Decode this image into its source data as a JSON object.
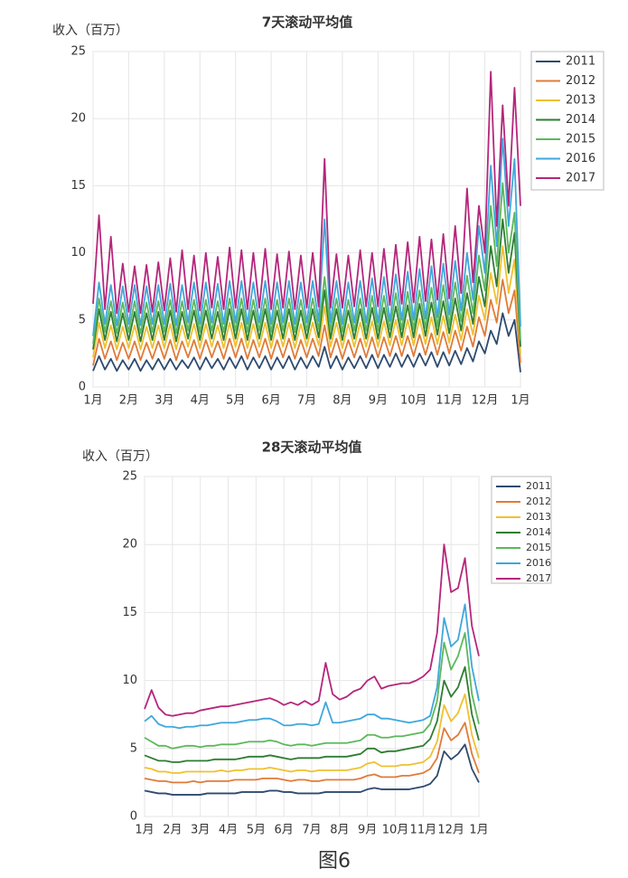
{
  "chart_data": [
    {
      "type": "line",
      "title": "7天滚动平均值",
      "y_label": "收入（百万）",
      "categories": [
        "1月",
        null,
        null,
        null,
        null,
        null,
        "2月",
        null,
        null,
        null,
        null,
        null,
        "3月",
        null,
        null,
        null,
        null,
        null,
        "4月",
        null,
        null,
        null,
        null,
        null,
        "5月",
        null,
        null,
        null,
        null,
        null,
        "6月",
        null,
        null,
        null,
        null,
        null,
        "7月",
        null,
        null,
        null,
        null,
        null,
        "8月",
        null,
        null,
        null,
        null,
        null,
        "9月",
        null,
        null,
        null,
        null,
        null,
        "10月",
        null,
        null,
        null,
        null,
        null,
        "11月",
        null,
        null,
        null,
        null,
        null,
        "12月",
        null,
        null,
        null,
        null,
        null,
        "1月"
      ],
      "ylim": [
        0,
        25
      ],
      "yticks": [
        0,
        5,
        10,
        15,
        20,
        25
      ],
      "grid": true,
      "legend": "right",
      "series": [
        {
          "name": "2011",
          "color": "#2e4a6e",
          "values": [
            1.2,
            2.3,
            1.3,
            2.1,
            1.2,
            2.0,
            1.3,
            2.1,
            1.2,
            2.0,
            1.3,
            2.1,
            1.3,
            2.1,
            1.3,
            2.0,
            1.4,
            2.2,
            1.3,
            2.2,
            1.4,
            2.1,
            1.3,
            2.2,
            1.4,
            2.3,
            1.3,
            2.2,
            1.4,
            2.3,
            1.3,
            2.2,
            1.4,
            2.3,
            1.3,
            2.2,
            1.4,
            2.3,
            1.5,
            3.0,
            1.4,
            2.3,
            1.3,
            2.2,
            1.4,
            2.3,
            1.4,
            2.4,
            1.4,
            2.4,
            1.5,
            2.5,
            1.5,
            2.4,
            1.5,
            2.5,
            1.6,
            2.6,
            1.5,
            2.6,
            1.6,
            2.7,
            1.7,
            2.9,
            1.9,
            3.4,
            2.5,
            4.2,
            3.2,
            5.5,
            3.8,
            5.0,
            1.1
          ]
        },
        {
          "name": "2012",
          "color": "#e07b39",
          "values": [
            1.6,
            3.6,
            2.1,
            3.4,
            2.0,
            3.3,
            2.1,
            3.4,
            2.0,
            3.3,
            2.1,
            3.4,
            2.1,
            3.5,
            2.0,
            3.4,
            2.2,
            3.5,
            2.1,
            3.5,
            2.2,
            3.4,
            2.1,
            3.6,
            2.2,
            3.6,
            2.1,
            3.5,
            2.2,
            3.6,
            2.1,
            3.5,
            2.2,
            3.6,
            2.1,
            3.5,
            2.2,
            3.6,
            2.3,
            4.6,
            2.2,
            3.6,
            2.1,
            3.5,
            2.2,
            3.6,
            2.2,
            3.7,
            2.2,
            3.7,
            2.3,
            3.8,
            2.3,
            3.8,
            2.3,
            3.9,
            2.4,
            4.0,
            2.4,
            4.1,
            2.5,
            4.2,
            2.7,
            4.5,
            3.0,
            5.2,
            3.8,
            6.5,
            4.8,
            8.0,
            5.5,
            7.2,
            1.8
          ]
        },
        {
          "name": "2013",
          "color": "#f0c030",
          "values": [
            2.2,
            4.8,
            2.9,
            4.6,
            2.8,
            4.5,
            2.9,
            4.6,
            2.8,
            4.5,
            2.9,
            4.6,
            2.9,
            4.7,
            2.8,
            4.6,
            3.0,
            4.7,
            2.9,
            4.7,
            3.0,
            4.6,
            2.9,
            4.8,
            3.0,
            4.8,
            2.9,
            4.7,
            3.0,
            4.8,
            2.9,
            4.7,
            3.0,
            4.8,
            2.9,
            4.7,
            3.0,
            4.8,
            3.1,
            6.0,
            3.0,
            4.8,
            2.9,
            4.7,
            3.0,
            4.8,
            3.0,
            4.9,
            3.0,
            4.9,
            3.1,
            5.0,
            3.1,
            5.0,
            3.1,
            5.1,
            3.2,
            5.2,
            3.2,
            5.3,
            3.3,
            5.4,
            3.5,
            5.8,
            3.9,
            6.8,
            5.0,
            8.5,
            6.2,
            10.5,
            7.0,
            9.5,
            2.5
          ]
        },
        {
          "name": "2014",
          "color": "#2e7d32",
          "values": [
            2.8,
            5.8,
            3.5,
            5.6,
            3.4,
            5.5,
            3.5,
            5.6,
            3.4,
            5.5,
            3.5,
            5.6,
            3.5,
            5.7,
            3.4,
            5.6,
            3.6,
            5.7,
            3.5,
            5.7,
            3.6,
            5.6,
            3.5,
            5.8,
            3.6,
            5.8,
            3.5,
            5.7,
            3.6,
            5.8,
            3.5,
            5.7,
            3.6,
            5.8,
            3.5,
            5.7,
            3.6,
            5.8,
            3.7,
            7.2,
            3.6,
            5.8,
            3.5,
            5.7,
            3.6,
            5.8,
            3.6,
            5.9,
            3.6,
            5.9,
            3.7,
            6.0,
            3.7,
            6.1,
            3.7,
            6.2,
            3.8,
            6.3,
            3.9,
            6.4,
            4.0,
            6.6,
            4.2,
            7.0,
            4.7,
            8.2,
            6.0,
            10.5,
            7.5,
            12.5,
            8.5,
            11.5,
            3.0
          ]
        },
        {
          "name": "2015",
          "color": "#5cb85c",
          "values": [
            3.2,
            6.6,
            4.1,
            6.4,
            4.0,
            6.3,
            4.1,
            6.4,
            4.0,
            6.3,
            4.1,
            6.4,
            4.1,
            6.5,
            4.0,
            6.4,
            4.2,
            6.5,
            4.1,
            6.5,
            4.2,
            6.4,
            4.1,
            6.6,
            4.2,
            6.6,
            4.1,
            6.5,
            4.2,
            6.6,
            4.1,
            6.5,
            4.2,
            6.6,
            4.1,
            6.5,
            4.2,
            6.6,
            4.3,
            8.2,
            4.2,
            6.6,
            4.1,
            6.5,
            4.2,
            6.6,
            4.2,
            6.8,
            4.2,
            6.8,
            4.3,
            7.0,
            4.3,
            7.1,
            4.3,
            7.2,
            4.4,
            7.4,
            4.5,
            7.6,
            4.6,
            7.8,
            4.9,
            8.3,
            5.5,
            9.8,
            7.2,
            13.5,
            9.0,
            15.2,
            10.0,
            13.0,
            3.5
          ]
        },
        {
          "name": "2016",
          "color": "#3fa7dc",
          "values": [
            3.8,
            7.8,
            4.7,
            7.6,
            4.6,
            7.5,
            4.7,
            7.6,
            4.6,
            7.5,
            4.7,
            7.6,
            4.7,
            7.7,
            4.6,
            7.6,
            4.8,
            7.8,
            4.7,
            7.8,
            4.8,
            7.7,
            4.7,
            7.9,
            4.8,
            7.9,
            4.7,
            7.8,
            4.8,
            7.9,
            4.7,
            7.8,
            4.8,
            7.9,
            4.7,
            7.8,
            4.8,
            7.9,
            4.9,
            12.5,
            4.8,
            7.9,
            4.7,
            7.8,
            4.8,
            7.9,
            4.8,
            8.1,
            4.8,
            8.2,
            4.9,
            8.4,
            5.0,
            8.6,
            5.0,
            8.8,
            5.1,
            9.0,
            5.2,
            9.2,
            5.4,
            9.4,
            5.7,
            10.0,
            6.5,
            12.0,
            8.5,
            16.5,
            10.5,
            18.5,
            12.0,
            17.0,
            4.5
          ]
        },
        {
          "name": "2017",
          "color": "#b5267b",
          "values": [
            6.2,
            12.8,
            5.8,
            11.2,
            5.5,
            9.2,
            5.6,
            9.0,
            5.5,
            9.1,
            5.6,
            9.3,
            5.7,
            9.6,
            5.6,
            10.2,
            5.8,
            9.8,
            5.7,
            10.0,
            5.9,
            9.7,
            5.8,
            10.4,
            5.9,
            10.2,
            5.8,
            10.0,
            5.9,
            10.3,
            5.8,
            9.9,
            5.9,
            10.1,
            5.8,
            9.8,
            5.9,
            10.0,
            6.0,
            17.0,
            5.9,
            9.9,
            5.9,
            9.8,
            6.0,
            10.2,
            6.0,
            10.0,
            6.0,
            10.3,
            6.1,
            10.6,
            6.2,
            10.8,
            6.3,
            11.2,
            6.4,
            11.0,
            6.5,
            11.4,
            6.6,
            12.0,
            7.0,
            14.8,
            7.8,
            13.5,
            10.0,
            23.5,
            12.0,
            21.0,
            13.5,
            22.3,
            13.5
          ]
        }
      ]
    },
    {
      "type": "line",
      "title": "28天滚动平均值",
      "y_label": "收入（百万）",
      "categories": [
        "1月",
        null,
        null,
        null,
        "2月",
        null,
        null,
        null,
        "3月",
        null,
        null,
        null,
        "4月",
        null,
        null,
        null,
        "5月",
        null,
        null,
        null,
        "6月",
        null,
        null,
        null,
        "7月",
        null,
        null,
        null,
        "8月",
        null,
        null,
        null,
        "9月",
        null,
        null,
        null,
        "10月",
        null,
        null,
        null,
        "11月",
        null,
        null,
        null,
        "12月",
        null,
        null,
        null,
        "1月"
      ],
      "ylim": [
        0,
        25
      ],
      "yticks": [
        0,
        5,
        10,
        15,
        20,
        25
      ],
      "grid": true,
      "legend": "right",
      "series": [
        {
          "name": "2011",
          "color": "#2e4a6e",
          "values": [
            1.9,
            1.8,
            1.7,
            1.7,
            1.6,
            1.6,
            1.6,
            1.6,
            1.6,
            1.7,
            1.7,
            1.7,
            1.7,
            1.7,
            1.8,
            1.8,
            1.8,
            1.8,
            1.9,
            1.9,
            1.8,
            1.8,
            1.7,
            1.7,
            1.7,
            1.7,
            1.8,
            1.8,
            1.8,
            1.8,
            1.8,
            1.8,
            2.0,
            2.1,
            2.0,
            2.0,
            2.0,
            2.0,
            2.0,
            2.1,
            2.2,
            2.4,
            3.0,
            4.8,
            4.2,
            4.6,
            5.3,
            3.5,
            2.5
          ]
        },
        {
          "name": "2012",
          "color": "#e07b39",
          "values": [
            2.8,
            2.7,
            2.6,
            2.6,
            2.5,
            2.5,
            2.5,
            2.6,
            2.5,
            2.6,
            2.6,
            2.6,
            2.6,
            2.7,
            2.7,
            2.7,
            2.7,
            2.8,
            2.8,
            2.8,
            2.7,
            2.6,
            2.7,
            2.7,
            2.6,
            2.6,
            2.7,
            2.7,
            2.7,
            2.7,
            2.7,
            2.8,
            3.0,
            3.1,
            2.9,
            2.9,
            2.9,
            3.0,
            3.0,
            3.1,
            3.2,
            3.5,
            4.3,
            6.5,
            5.6,
            6.0,
            6.9,
            4.6,
            3.2
          ]
        },
        {
          "name": "2013",
          "color": "#f0c030",
          "values": [
            3.6,
            3.5,
            3.3,
            3.3,
            3.2,
            3.2,
            3.3,
            3.3,
            3.3,
            3.3,
            3.3,
            3.4,
            3.3,
            3.4,
            3.4,
            3.5,
            3.5,
            3.5,
            3.6,
            3.5,
            3.4,
            3.3,
            3.4,
            3.4,
            3.3,
            3.4,
            3.4,
            3.4,
            3.4,
            3.4,
            3.5,
            3.6,
            3.9,
            4.0,
            3.7,
            3.7,
            3.7,
            3.8,
            3.8,
            3.9,
            4.0,
            4.4,
            5.5,
            8.2,
            7.0,
            7.6,
            9.0,
            6.0,
            4.3
          ]
        },
        {
          "name": "2014",
          "color": "#2e7d32",
          "values": [
            4.5,
            4.3,
            4.1,
            4.1,
            4.0,
            4.0,
            4.1,
            4.1,
            4.1,
            4.1,
            4.2,
            4.2,
            4.2,
            4.2,
            4.3,
            4.4,
            4.4,
            4.4,
            4.5,
            4.4,
            4.3,
            4.2,
            4.3,
            4.3,
            4.3,
            4.3,
            4.4,
            4.4,
            4.4,
            4.4,
            4.5,
            4.6,
            5.0,
            5.0,
            4.7,
            4.8,
            4.8,
            4.9,
            5.0,
            5.1,
            5.2,
            5.7,
            7.0,
            10.0,
            8.8,
            9.5,
            11.0,
            7.5,
            5.6
          ]
        },
        {
          "name": "2015",
          "color": "#5cb85c",
          "values": [
            5.8,
            5.5,
            5.2,
            5.2,
            5.0,
            5.1,
            5.2,
            5.2,
            5.1,
            5.2,
            5.2,
            5.3,
            5.3,
            5.3,
            5.4,
            5.5,
            5.5,
            5.5,
            5.6,
            5.5,
            5.3,
            5.2,
            5.3,
            5.3,
            5.2,
            5.3,
            5.4,
            5.4,
            5.4,
            5.4,
            5.5,
            5.6,
            6.0,
            6.0,
            5.8,
            5.8,
            5.9,
            5.9,
            6.0,
            6.1,
            6.2,
            6.8,
            8.5,
            12.8,
            10.8,
            11.8,
            13.5,
            9.0,
            6.8
          ]
        },
        {
          "name": "2016",
          "color": "#3fa7dc",
          "values": [
            7.0,
            7.4,
            6.8,
            6.6,
            6.6,
            6.5,
            6.6,
            6.6,
            6.7,
            6.7,
            6.8,
            6.9,
            6.9,
            6.9,
            7.0,
            7.1,
            7.1,
            7.2,
            7.2,
            7.0,
            6.7,
            6.7,
            6.8,
            6.8,
            6.7,
            6.8,
            8.4,
            6.9,
            6.9,
            7.0,
            7.1,
            7.2,
            7.5,
            7.5,
            7.2,
            7.2,
            7.1,
            7.0,
            6.9,
            7.0,
            7.1,
            7.4,
            9.5,
            14.6,
            12.5,
            13.0,
            15.6,
            11.0,
            8.5
          ]
        },
        {
          "name": "2017",
          "color": "#b5267b",
          "values": [
            7.9,
            9.3,
            8.0,
            7.5,
            7.4,
            7.5,
            7.6,
            7.6,
            7.8,
            7.9,
            8.0,
            8.1,
            8.1,
            8.2,
            8.3,
            8.4,
            8.5,
            8.6,
            8.7,
            8.5,
            8.2,
            8.4,
            8.2,
            8.5,
            8.2,
            8.5,
            11.3,
            9.0,
            8.6,
            8.8,
            9.2,
            9.4,
            10.0,
            10.3,
            9.4,
            9.6,
            9.7,
            9.8,
            9.8,
            10.0,
            10.3,
            10.8,
            13.5,
            20.0,
            16.5,
            16.8,
            19.0,
            14.0,
            11.8
          ]
        }
      ]
    }
  ],
  "caption": "图6"
}
